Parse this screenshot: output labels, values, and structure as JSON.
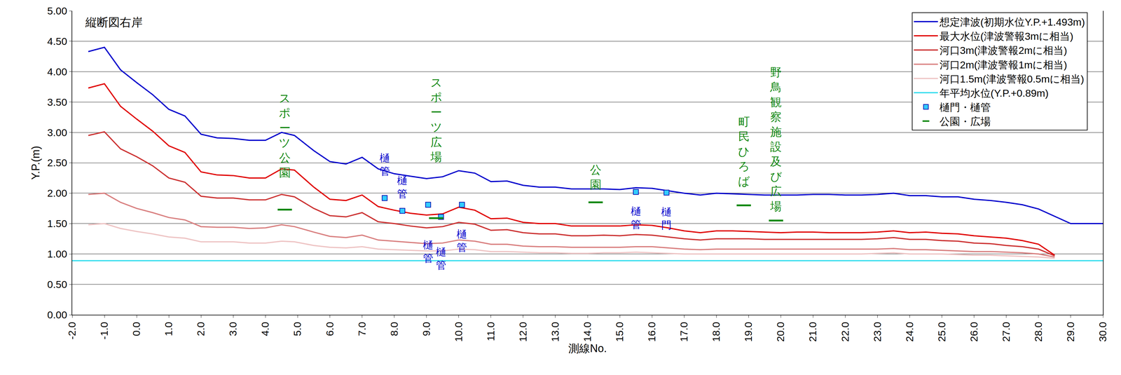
{
  "chart_data": {
    "type": "line",
    "title": "縦断図右岸",
    "x_label": "測線No.",
    "y_label": "Y.P.(m)",
    "x": [
      -1.5,
      -1.0,
      -0.5,
      0.0,
      0.5,
      1.0,
      1.5,
      2.0,
      2.5,
      3.0,
      3.5,
      4.0,
      4.5,
      4.9,
      5.5,
      6.0,
      6.5,
      7.0,
      7.5,
      8.0,
      8.5,
      9.0,
      9.5,
      10.0,
      10.5,
      11.0,
      11.5,
      12.0,
      12.5,
      13.0,
      13.5,
      14.0,
      14.5,
      15.0,
      15.5,
      16.0,
      16.5,
      17.0,
      17.5,
      18.0,
      18.5,
      19.0,
      19.5,
      20.0,
      20.5,
      21.0,
      21.5,
      22.0,
      22.5,
      23.0,
      23.5,
      24.0,
      24.5,
      25.0,
      25.5,
      26.0,
      26.5,
      27.0,
      27.5,
      28.0,
      28.5,
      29.0,
      30.0
    ],
    "series": [
      {
        "name": "想定津波(初期水位Y.P.+1.493m)",
        "color": "#0000CC",
        "line_style": "solid",
        "values": [
          4.33,
          4.4,
          4.03,
          3.82,
          3.62,
          3.38,
          3.27,
          2.97,
          2.91,
          2.9,
          2.87,
          2.87,
          3.0,
          2.95,
          2.7,
          2.52,
          2.48,
          2.59,
          2.4,
          2.32,
          2.28,
          2.24,
          2.27,
          2.37,
          2.33,
          2.19,
          2.2,
          2.13,
          2.1,
          2.1,
          2.07,
          2.07,
          2.07,
          2.06,
          2.09,
          2.08,
          2.04,
          2.0,
          1.97,
          2.0,
          1.99,
          1.98,
          1.97,
          1.97,
          1.97,
          1.98,
          1.98,
          1.97,
          1.97,
          1.98,
          2.0,
          1.96,
          1.96,
          1.94,
          1.94,
          1.9,
          1.88,
          1.85,
          1.81,
          1.74,
          1.62,
          1.5,
          1.5
        ]
      },
      {
        "name": "最大水位(津波警報3mに相当)",
        "color": "#E00000",
        "line_style": "solid",
        "values": [
          3.73,
          3.8,
          3.43,
          3.22,
          3.02,
          2.78,
          2.67,
          2.35,
          2.3,
          2.29,
          2.25,
          2.25,
          2.4,
          2.38,
          2.1,
          1.9,
          1.88,
          1.97,
          1.78,
          1.72,
          1.67,
          1.64,
          1.66,
          1.77,
          1.72,
          1.58,
          1.59,
          1.52,
          1.5,
          1.5,
          1.46,
          1.46,
          1.46,
          1.46,
          1.48,
          1.47,
          1.43,
          1.38,
          1.35,
          1.38,
          1.38,
          1.37,
          1.36,
          1.35,
          1.36,
          1.36,
          1.35,
          1.35,
          1.35,
          1.36,
          1.38,
          1.35,
          1.36,
          1.34,
          1.33,
          1.3,
          1.28,
          1.26,
          1.22,
          1.16,
          0.98,
          null,
          null
        ]
      },
      {
        "name": "河口3m(津波警報2mに相当)",
        "color": "#CC3333",
        "line_style": "solid",
        "values": [
          2.95,
          3.01,
          2.73,
          2.6,
          2.45,
          2.25,
          2.18,
          1.95,
          1.92,
          1.92,
          1.89,
          1.89,
          1.98,
          1.94,
          1.75,
          1.63,
          1.61,
          1.68,
          1.53,
          1.5,
          1.46,
          1.43,
          1.45,
          1.52,
          1.49,
          1.39,
          1.4,
          1.35,
          1.33,
          1.33,
          1.3,
          1.3,
          1.31,
          1.3,
          1.32,
          1.31,
          1.28,
          1.25,
          1.23,
          1.25,
          1.25,
          1.25,
          1.24,
          1.24,
          1.24,
          1.24,
          1.24,
          1.24,
          1.24,
          1.25,
          1.27,
          1.24,
          1.24,
          1.22,
          1.21,
          1.18,
          1.17,
          1.14,
          1.12,
          1.08,
          0.97,
          null,
          null
        ]
      },
      {
        "name": "河口2m(津波警報1mに相当)",
        "color": "#D98080",
        "line_style": "solid",
        "values": [
          1.98,
          2.0,
          1.85,
          1.75,
          1.68,
          1.6,
          1.56,
          1.45,
          1.44,
          1.44,
          1.42,
          1.43,
          1.48,
          1.45,
          1.36,
          1.29,
          1.27,
          1.31,
          1.23,
          1.21,
          1.19,
          1.17,
          1.18,
          1.23,
          1.21,
          1.16,
          1.16,
          1.13,
          1.12,
          1.12,
          1.11,
          1.11,
          1.11,
          1.11,
          1.12,
          1.12,
          1.1,
          1.08,
          1.07,
          1.08,
          1.08,
          1.08,
          1.08,
          1.08,
          1.08,
          1.08,
          1.08,
          1.08,
          1.08,
          1.08,
          1.09,
          1.07,
          1.07,
          1.06,
          1.05,
          1.04,
          1.04,
          1.03,
          1.02,
          1.0,
          0.95,
          null,
          null
        ]
      },
      {
        "name": "河口1.5m(津波警報0.5mに相当)",
        "color": "#EEC4C4",
        "line_style": "solid",
        "values": [
          1.48,
          1.5,
          1.42,
          1.37,
          1.33,
          1.28,
          1.26,
          1.2,
          1.2,
          1.2,
          1.18,
          1.18,
          1.21,
          1.2,
          1.14,
          1.11,
          1.1,
          1.12,
          1.08,
          1.07,
          1.06,
          1.05,
          1.05,
          1.08,
          1.07,
          1.04,
          1.04,
          1.03,
          1.02,
          1.02,
          1.01,
          1.01,
          1.02,
          1.02,
          1.03,
          1.02,
          1.01,
          1.0,
          1.0,
          1.0,
          1.0,
          1.0,
          1.0,
          1.0,
          1.0,
          1.0,
          1.0,
          1.0,
          1.0,
          1.01,
          1.02,
          1.0,
          1.0,
          1.0,
          0.99,
          0.98,
          0.98,
          0.97,
          0.96,
          0.95,
          0.93,
          null,
          null
        ]
      },
      {
        "name": "年平均水位(Y.P.+0.89m)",
        "color": "#33DDEE",
        "line_style": "solid",
        "x": [
          -2.0,
          30.0
        ],
        "values": [
          0.89,
          0.89
        ]
      },
      {
        "name": "樋門・樋管",
        "type": "scatter",
        "marker": "square",
        "color": "#33CCFF",
        "x": [
          7.7,
          8.25,
          9.05,
          9.45,
          10.1,
          15.5,
          16.45
        ],
        "values": [
          1.92,
          1.71,
          1.81,
          1.61,
          1.81,
          2.02,
          2.01
        ],
        "point_labels": [
          "樋管",
          "樋管",
          "樋管",
          "樋管",
          "樋管",
          "樋管",
          "樋門"
        ]
      },
      {
        "name": "公園・広場",
        "type": "scatter",
        "marker": "line",
        "color": "#118811",
        "x": [
          4.6,
          9.3,
          14.25,
          18.85,
          19.85
        ],
        "values": [
          1.73,
          1.59,
          1.85,
          1.8,
          1.55
        ],
        "point_labels": [
          "スポーツ公園",
          "スポーツ広場",
          "公園",
          "町民ひろば",
          "野鳥観察施設及び広場"
        ]
      }
    ],
    "xlim": [
      -2.0,
      30.0
    ],
    "ylim": [
      0.0,
      5.0
    ],
    "xticks": [
      {
        "value": -2,
        "label": "-2.0"
      },
      {
        "value": -1,
        "label": "-1.0"
      },
      {
        "value": 0,
        "label": "0.0"
      },
      {
        "value": 1,
        "label": "1.0"
      },
      {
        "value": 2,
        "label": "2.0"
      },
      {
        "value": 3,
        "label": "3.0"
      },
      {
        "value": 4,
        "label": "4.0"
      },
      {
        "value": 5,
        "label": "5.0"
      },
      {
        "value": 6,
        "label": "6.0"
      },
      {
        "value": 7,
        "label": "7.0"
      },
      {
        "value": 8,
        "label": "8.0"
      },
      {
        "value": 9,
        "label": "9.0"
      },
      {
        "value": 10,
        "label": "10.0"
      },
      {
        "value": 11,
        "label": "11.0"
      },
      {
        "value": 12,
        "label": "12.0"
      },
      {
        "value": 13,
        "label": "13.0"
      },
      {
        "value": 14,
        "label": "14.0"
      },
      {
        "value": 15,
        "label": "15.0"
      },
      {
        "value": 16,
        "label": "16.0"
      },
      {
        "value": 17,
        "label": "17.0"
      },
      {
        "value": 18,
        "label": "18.0"
      },
      {
        "value": 19,
        "label": "19.0"
      },
      {
        "value": 20,
        "label": "20.0"
      },
      {
        "value": 21,
        "label": "21.0"
      },
      {
        "value": 22,
        "label": "22.0"
      },
      {
        "value": 23,
        "label": "23.0"
      },
      {
        "value": 24,
        "label": "24.0"
      },
      {
        "value": 25,
        "label": "25.0"
      },
      {
        "value": 26,
        "label": "26.0"
      },
      {
        "value": 27,
        "label": "27.0"
      },
      {
        "value": 28,
        "label": "28.0"
      },
      {
        "value": 29,
        "label": "29.0"
      },
      {
        "value": 30,
        "label": "30.0"
      }
    ],
    "yticks": [
      {
        "value": 0,
        "label": "0.00"
      },
      {
        "value": 0.5,
        "label": "0.50"
      },
      {
        "value": 1,
        "label": "1.00"
      },
      {
        "value": 1.5,
        "label": "1.50"
      },
      {
        "value": 2,
        "label": "2.00"
      },
      {
        "value": 2.5,
        "label": "2.50"
      },
      {
        "value": 3,
        "label": "3.00"
      },
      {
        "value": 3.5,
        "label": "3.50"
      },
      {
        "value": 4,
        "label": "4.00"
      },
      {
        "value": 4.5,
        "label": "4.50"
      },
      {
        "value": 5,
        "label": "5.00"
      }
    ],
    "grid": true,
    "legend": "upper right"
  }
}
